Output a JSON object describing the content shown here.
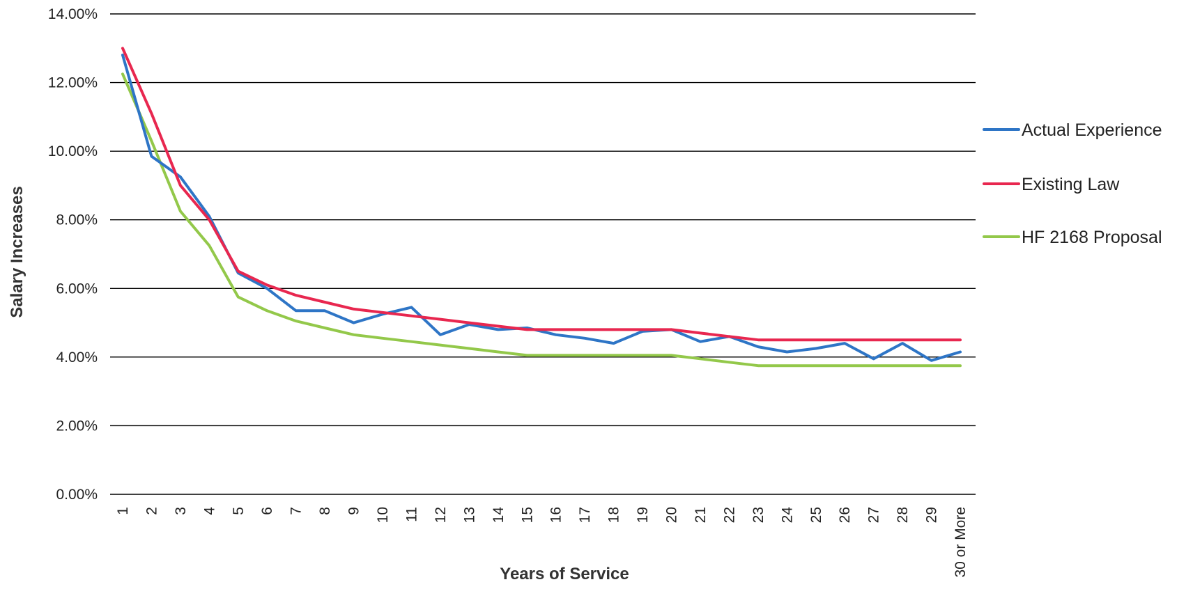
{
  "chart_data": {
    "type": "line",
    "title": "",
    "xlabel": "Years of Service",
    "ylabel": "Salary Increases",
    "ylim": [
      0,
      14
    ],
    "y_ticks": [
      "0.00%",
      "2.00%",
      "4.00%",
      "6.00%",
      "8.00%",
      "10.00%",
      "12.00%",
      "14.00%"
    ],
    "y_tick_values": [
      0,
      2,
      4,
      6,
      8,
      10,
      12,
      14
    ],
    "grid": true,
    "legend_position": "right",
    "categories": [
      "1",
      "2",
      "3",
      "4",
      "5",
      "6",
      "7",
      "8",
      "9",
      "10",
      "11",
      "12",
      "13",
      "14",
      "15",
      "16",
      "17",
      "18",
      "19",
      "20",
      "21",
      "22",
      "23",
      "24",
      "25",
      "26",
      "27",
      "28",
      "29",
      "30 or More"
    ],
    "series": [
      {
        "name": "Actual Experience",
        "color": "#2e75c6",
        "values": [
          12.8,
          9.85,
          9.25,
          8.1,
          6.45,
          6.0,
          5.35,
          5.35,
          5.0,
          5.25,
          5.45,
          4.65,
          4.95,
          4.8,
          4.85,
          4.65,
          4.55,
          4.4,
          4.75,
          4.8,
          4.45,
          4.6,
          4.3,
          4.15,
          4.25,
          4.4,
          3.95,
          4.4,
          3.9,
          4.15
        ]
      },
      {
        "name": "Existing Law",
        "color": "#e8274f",
        "values": [
          13.0,
          11.1,
          9.0,
          8.0,
          6.5,
          6.1,
          5.8,
          5.6,
          5.4,
          5.3,
          5.2,
          5.1,
          5.0,
          4.9,
          4.8,
          4.8,
          4.8,
          4.8,
          4.8,
          4.8,
          4.7,
          4.6,
          4.5,
          4.5,
          4.5,
          4.5,
          4.5,
          4.5,
          4.5,
          4.5
        ]
      },
      {
        "name": "HF 2168 Proposal",
        "color": "#93c84a",
        "values": [
          12.25,
          10.3,
          8.25,
          7.25,
          5.75,
          5.35,
          5.05,
          4.85,
          4.65,
          4.55,
          4.45,
          4.35,
          4.25,
          4.15,
          4.05,
          4.05,
          4.05,
          4.05,
          4.05,
          4.05,
          3.95,
          3.85,
          3.75,
          3.75,
          3.75,
          3.75,
          3.75,
          3.75,
          3.75,
          3.75
        ]
      }
    ]
  }
}
